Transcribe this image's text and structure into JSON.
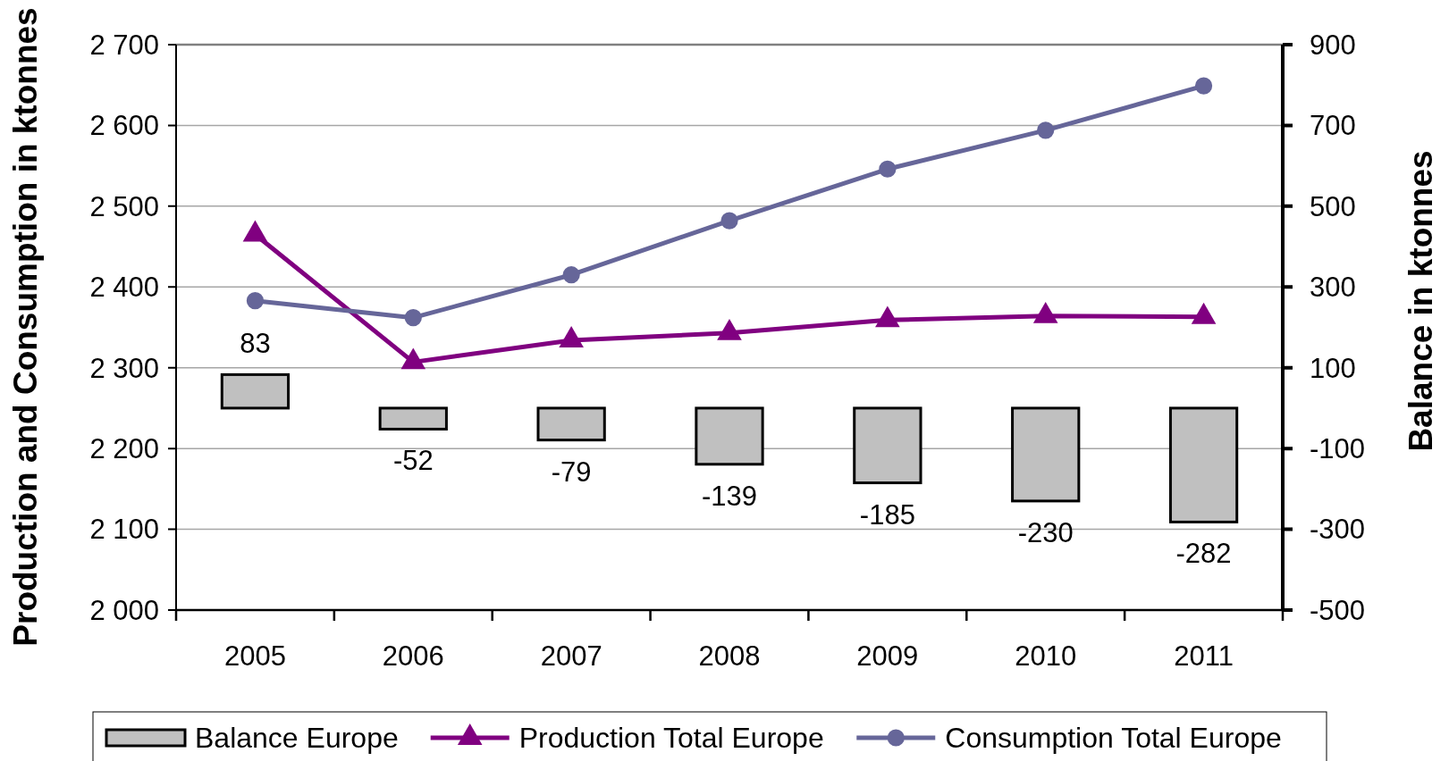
{
  "chart_data": {
    "type": "bar",
    "ylabel": "Production and Consumption in ktonnes",
    "y2label": "Balance in ktonnes",
    "categories": [
      "2005",
      "2006",
      "2007",
      "2008",
      "2009",
      "2010",
      "2011"
    ],
    "series": [
      {
        "name": "Balance Europe",
        "axis": "y2",
        "color": "#c0c0c0",
        "values": [
          83,
          -52,
          -79,
          -139,
          -185,
          -230,
          -282
        ],
        "value_labels": [
          "83",
          "-52",
          "-79",
          "-139",
          "-185",
          "-230",
          "-282"
        ]
      },
      {
        "name": "Production Total Europe",
        "type": "line",
        "axis": "y",
        "color": "#800080",
        "marker": "triangle",
        "values": [
          2465,
          2307,
          2334,
          2343,
          2359,
          2364,
          2363
        ]
      },
      {
        "name": "Consumption Total Europe",
        "type": "line",
        "axis": "y",
        "color": "#666699",
        "marker": "circle",
        "values": [
          2383,
          2362,
          2415,
          2482,
          2546,
          2594,
          2649
        ]
      }
    ],
    "ylim": [
      2000,
      2700
    ],
    "yticks": [
      {
        "value": 2000,
        "label": "2 000"
      },
      {
        "value": 2100,
        "label": "2 100"
      },
      {
        "value": 2200,
        "label": "2 200"
      },
      {
        "value": 2300,
        "label": "2 300"
      },
      {
        "value": 2400,
        "label": "2 400"
      },
      {
        "value": 2500,
        "label": "2 500"
      },
      {
        "value": 2600,
        "label": "2 600"
      },
      {
        "value": 2700,
        "label": "2 700"
      }
    ],
    "y2lim": [
      -500,
      900
    ],
    "y2ticks": [
      -500,
      -300,
      -100,
      100,
      300,
      500,
      700,
      900
    ],
    "grid": "y",
    "legend": "bottom"
  }
}
